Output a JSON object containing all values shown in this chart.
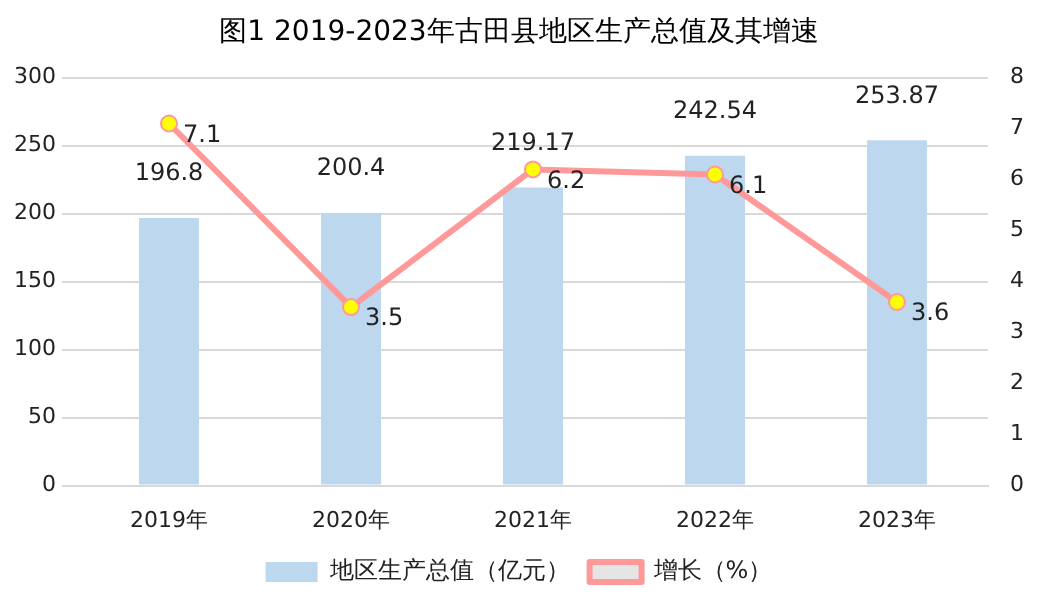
{
  "chart_data": {
    "type": "bar",
    "title": "图1 2019-2023年古田县地区生产总值及其增速",
    "categories": [
      "2019年",
      "2020年",
      "2021年",
      "2022年",
      "2023年"
    ],
    "series": [
      {
        "name": "地区生产总值（亿元）",
        "color": "#bdd7ee",
        "values": [
          196.8,
          200.4,
          219.17,
          242.54,
          253.87
        ]
      },
      {
        "name": "增长（%）",
        "type": "line",
        "axis": "y2",
        "color": "#ff9999",
        "marker": "circle",
        "values": [
          7.1,
          3.5,
          6.2,
          6.1,
          3.6
        ]
      }
    ],
    "ylim": [
      0,
      300
    ],
    "yticks": [
      0,
      50,
      100,
      150,
      200,
      250,
      300
    ],
    "y2lim": [
      0,
      8
    ],
    "y2ticks": [
      0,
      1,
      2,
      3,
      4,
      5,
      6,
      7,
      8
    ],
    "grid": "y",
    "legend": "bottom",
    "data_labels": true
  }
}
